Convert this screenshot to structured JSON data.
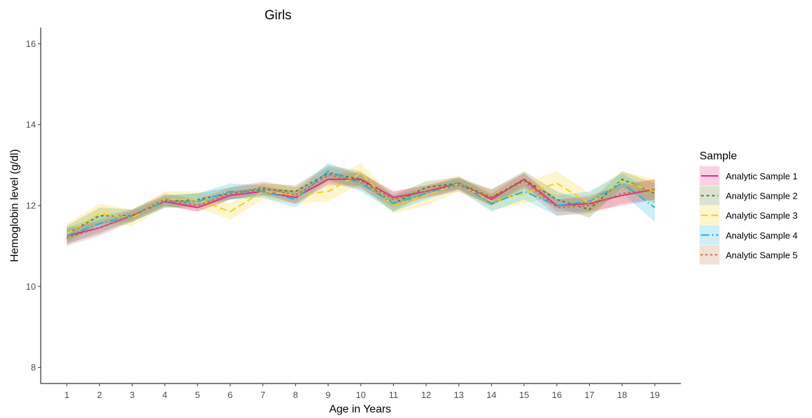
{
  "chart_data": {
    "type": "line",
    "title": "Girls",
    "xlabel": "Age in Years",
    "ylabel": "Hemoglobin level (g/dl)",
    "x": [
      1,
      2,
      3,
      4,
      5,
      6,
      7,
      8,
      9,
      10,
      11,
      12,
      13,
      14,
      15,
      16,
      17,
      18,
      19
    ],
    "xlim": [
      0.2,
      19.8
    ],
    "ylim": [
      7.6,
      16.4
    ],
    "yticks": [
      8,
      10,
      12,
      14,
      16
    ],
    "grid": false,
    "legend": {
      "title": "Sample",
      "position": "right"
    },
    "series": [
      {
        "name": "Analytic Sample 1",
        "color": "#e7298a",
        "dash": "solid",
        "values": [
          11.25,
          11.45,
          11.75,
          12.1,
          11.95,
          12.25,
          12.35,
          12.2,
          12.65,
          12.65,
          12.2,
          12.35,
          12.55,
          12.15,
          12.65,
          12.0,
          12.05,
          12.25,
          12.4
        ],
        "lower": [
          11.05,
          11.3,
          11.65,
          12.0,
          11.85,
          12.15,
          12.25,
          12.05,
          12.5,
          12.5,
          12.05,
          12.2,
          12.4,
          12.0,
          12.5,
          11.85,
          11.85,
          12.0,
          12.15
        ],
        "upper": [
          11.45,
          11.6,
          11.85,
          12.2,
          12.05,
          12.35,
          12.45,
          12.35,
          12.8,
          12.8,
          12.35,
          12.5,
          12.7,
          12.3,
          12.8,
          12.15,
          12.25,
          12.5,
          12.65
        ]
      },
      {
        "name": "Analytic Sample 2",
        "color": "#5a7d2a",
        "dash": "4,4",
        "values": [
          11.3,
          11.75,
          11.75,
          12.1,
          12.15,
          12.3,
          12.4,
          12.35,
          12.8,
          12.65,
          12.05,
          12.45,
          12.55,
          12.2,
          12.65,
          12.15,
          11.9,
          12.65,
          12.3
        ],
        "lower": [
          11.1,
          11.55,
          11.6,
          11.95,
          12.0,
          12.15,
          12.25,
          12.2,
          12.6,
          12.45,
          11.85,
          12.3,
          12.4,
          12.0,
          12.45,
          11.95,
          11.7,
          12.45,
          12.05
        ],
        "upper": [
          11.5,
          11.95,
          11.9,
          12.25,
          12.3,
          12.45,
          12.55,
          12.5,
          13.0,
          12.85,
          12.25,
          12.6,
          12.7,
          12.4,
          12.85,
          12.35,
          12.1,
          12.85,
          12.55
        ]
      },
      {
        "name": "Analytic Sample 3",
        "color": "#f2d11a",
        "dash": "10,5",
        "values": [
          11.3,
          11.8,
          11.7,
          12.15,
          12.15,
          11.85,
          12.35,
          12.25,
          12.35,
          12.8,
          12.0,
          12.25,
          12.55,
          12.1,
          12.3,
          12.55,
          12.05,
          12.6,
          12.35
        ],
        "lower": [
          11.05,
          11.55,
          11.5,
          11.95,
          11.95,
          11.65,
          12.15,
          12.05,
          12.1,
          12.55,
          11.8,
          12.0,
          12.35,
          11.9,
          12.05,
          12.25,
          11.8,
          12.35,
          12.05
        ],
        "upper": [
          11.55,
          12.05,
          11.9,
          12.35,
          12.35,
          12.05,
          12.55,
          12.45,
          12.6,
          13.05,
          12.2,
          12.5,
          12.75,
          12.3,
          12.55,
          12.85,
          12.3,
          12.85,
          12.65
        ]
      },
      {
        "name": "Analytic Sample 4",
        "color": "#17b8e0",
        "dash": "12,4,2,4",
        "values": [
          11.25,
          11.55,
          11.75,
          12.1,
          12.1,
          12.35,
          12.35,
          12.15,
          12.85,
          12.55,
          12.05,
          12.3,
          12.55,
          12.05,
          12.35,
          12.0,
          12.1,
          12.55,
          11.95
        ],
        "lower": [
          11.05,
          11.35,
          11.6,
          11.95,
          11.95,
          12.15,
          12.2,
          11.95,
          12.65,
          12.35,
          11.85,
          12.15,
          12.4,
          11.85,
          12.15,
          11.75,
          11.85,
          12.3,
          11.6
        ],
        "upper": [
          11.45,
          11.75,
          11.9,
          12.25,
          12.3,
          12.55,
          12.5,
          12.35,
          13.05,
          12.75,
          12.25,
          12.45,
          12.7,
          12.25,
          12.55,
          12.25,
          12.35,
          12.8,
          12.3
        ]
      },
      {
        "name": "Analytic Sample 5",
        "color": "#c8733f",
        "dash": "2,5",
        "values": [
          11.2,
          11.45,
          11.75,
          12.15,
          12.0,
          12.3,
          12.45,
          12.25,
          12.75,
          12.6,
          12.15,
          12.35,
          12.5,
          12.2,
          12.6,
          11.95,
          12.0,
          12.3,
          12.4
        ],
        "lower": [
          11.0,
          11.25,
          11.6,
          12.0,
          11.85,
          12.15,
          12.3,
          12.05,
          12.55,
          12.4,
          11.95,
          12.2,
          12.35,
          12.0,
          12.4,
          11.75,
          11.8,
          12.05,
          12.15
        ],
        "upper": [
          11.4,
          11.65,
          11.9,
          12.3,
          12.15,
          12.45,
          12.6,
          12.45,
          12.95,
          12.8,
          12.35,
          12.5,
          12.65,
          12.4,
          12.8,
          12.15,
          12.2,
          12.55,
          12.65
        ]
      }
    ]
  }
}
